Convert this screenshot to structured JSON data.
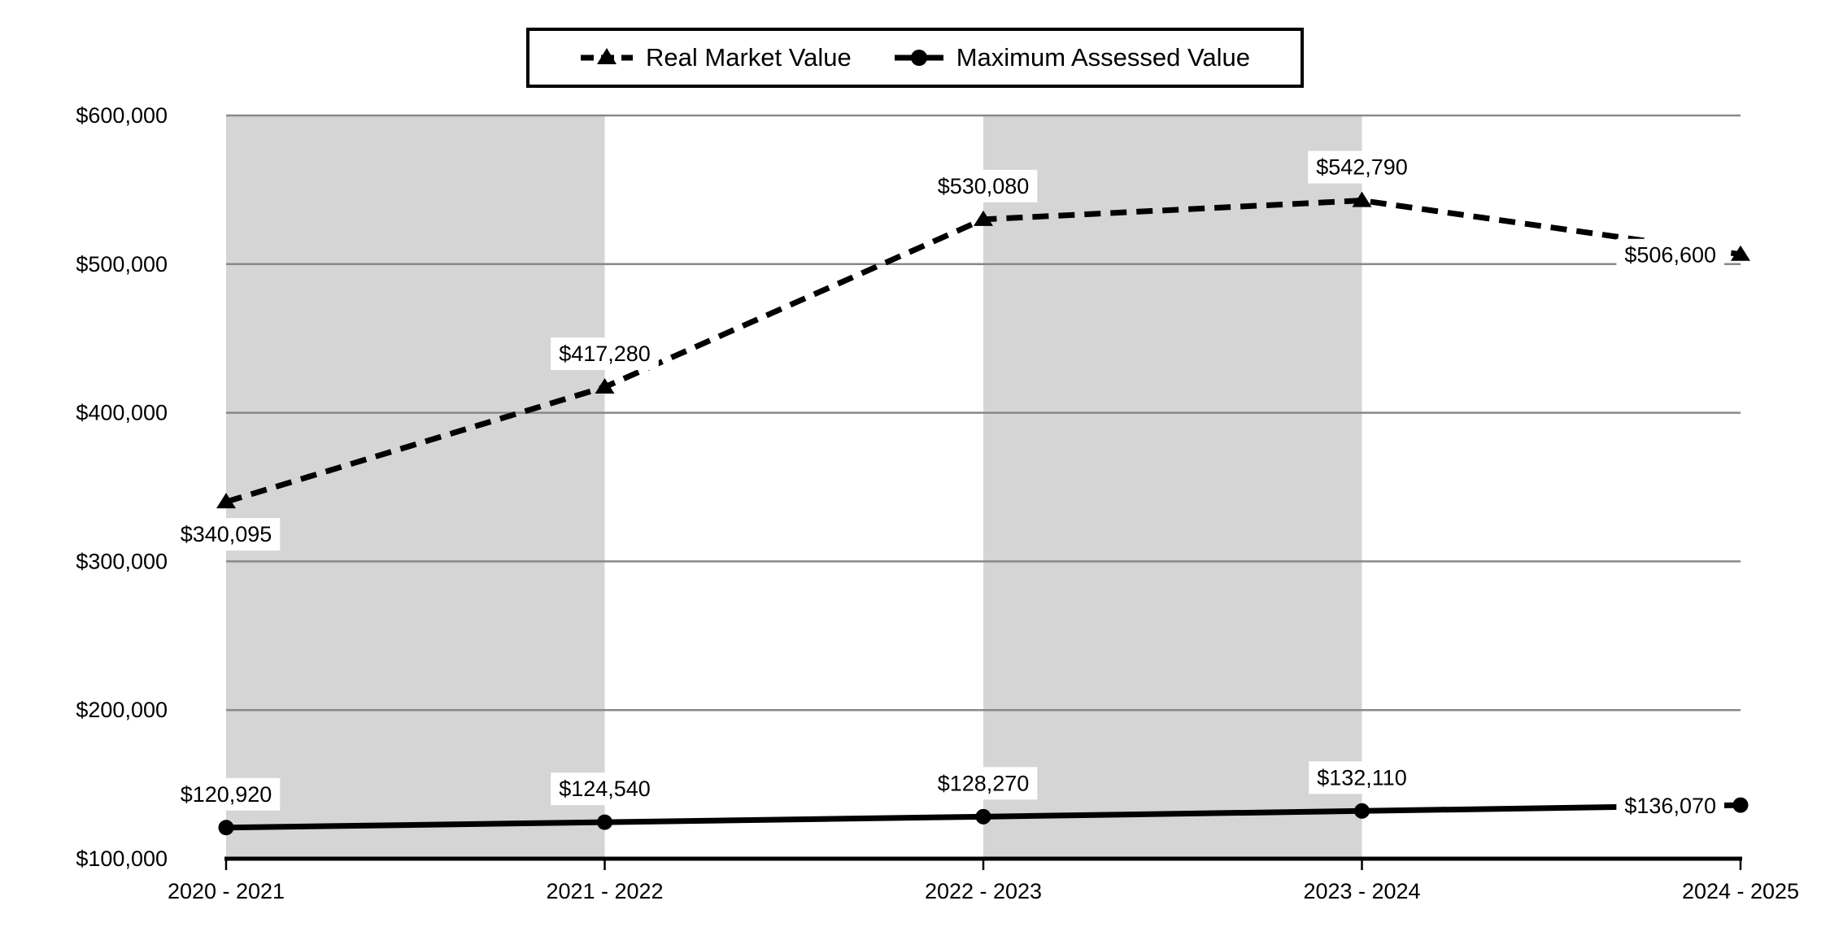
{
  "chart_data": {
    "type": "line",
    "title": "",
    "xlabel": "",
    "ylabel": "",
    "grid": "horizontal",
    "legend_position": "top-center",
    "categories": [
      "2020 - 2021",
      "2021 - 2022",
      "2022 - 2023",
      "2023 - 2024",
      "2024 - 2025"
    ],
    "series": [
      {
        "name": "Real Market Value",
        "line_style": "dashed",
        "marker": "triangle",
        "color": "#000000",
        "values": [
          340095,
          417280,
          530080,
          542790,
          506600
        ],
        "data_labels": [
          {
            "text": "$340,095",
            "position": "below"
          },
          {
            "text": "$417,280",
            "position": "above"
          },
          {
            "text": "$530,080",
            "position": "above"
          },
          {
            "text": "$542,790",
            "position": "above"
          },
          {
            "text": "$506,600",
            "position": "left"
          }
        ]
      },
      {
        "name": "Maximum Assessed Value",
        "line_style": "solid",
        "marker": "circle",
        "color": "#000000",
        "values": [
          120920,
          124540,
          128270,
          132110,
          136070
        ],
        "data_labels": [
          {
            "text": "$120,920",
            "position": "above"
          },
          {
            "text": "$124,540",
            "position": "above"
          },
          {
            "text": "$128,270",
            "position": "above"
          },
          {
            "text": "$132,110",
            "position": "above"
          },
          {
            "text": "$136,070",
            "position": "left"
          }
        ]
      }
    ],
    "y_axis": {
      "min": 100000,
      "max": 600000,
      "ticks": [
        {
          "value": 100000,
          "label": "$100,000"
        },
        {
          "value": 200000,
          "label": "$200,000"
        },
        {
          "value": 300000,
          "label": "$300,000"
        },
        {
          "value": 400000,
          "label": "$400,000"
        },
        {
          "value": 500000,
          "label": "$500,000"
        },
        {
          "value": 600000,
          "label": "$600,000"
        }
      ]
    },
    "background_bands": {
      "between_category_indices": [
        [
          0,
          1
        ],
        [
          2,
          3
        ]
      ],
      "color": "#d5d5d5"
    },
    "styles": {
      "gridline_color": "#898989",
      "axis_color": "#000000",
      "label_background": "#ffffff",
      "text_color": "#000000"
    }
  }
}
